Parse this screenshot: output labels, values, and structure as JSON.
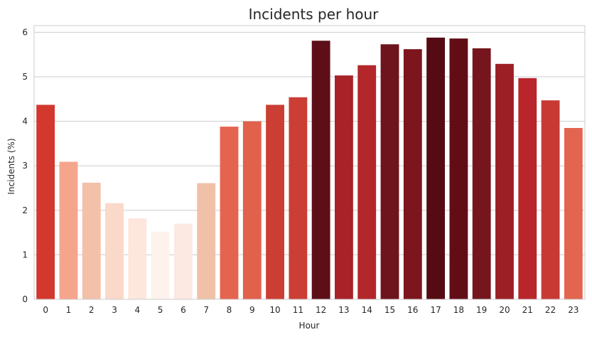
{
  "chart_data": {
    "type": "bar",
    "title": "Incidents per hour",
    "xlabel": "Hour",
    "ylabel": "Incidents (%)",
    "categories": [
      "0",
      "1",
      "2",
      "3",
      "4",
      "5",
      "6",
      "7",
      "8",
      "9",
      "10",
      "11",
      "12",
      "13",
      "14",
      "15",
      "16",
      "17",
      "18",
      "19",
      "20",
      "21",
      "22",
      "23"
    ],
    "values": [
      4.37,
      3.09,
      2.62,
      2.16,
      1.82,
      1.52,
      1.7,
      2.61,
      3.88,
      4.0,
      4.37,
      4.54,
      5.81,
      5.03,
      5.26,
      5.73,
      5.62,
      5.88,
      5.86,
      5.64,
      5.29,
      4.97,
      4.47,
      3.85
    ],
    "colors": [
      "#d3382f",
      "#f5a58c",
      "#f3c0aa",
      "#fad9ca",
      "#fde6dc",
      "#fdf2ec",
      "#fbe9e2",
      "#f1c0a9",
      "#e56450",
      "#e0614c",
      "#cb3e34",
      "#cb3e34",
      "#5d0e17",
      "#a82228",
      "#b3272a",
      "#6e141c",
      "#7c151d",
      "#560a14",
      "#620d16",
      "#75161e",
      "#9d1f26",
      "#b8262b",
      "#c83934",
      "#e36550"
    ],
    "ylim": [
      0,
      6.15
    ],
    "yticks": [
      0,
      1,
      2,
      3,
      4,
      5,
      6
    ],
    "grid": true
  }
}
